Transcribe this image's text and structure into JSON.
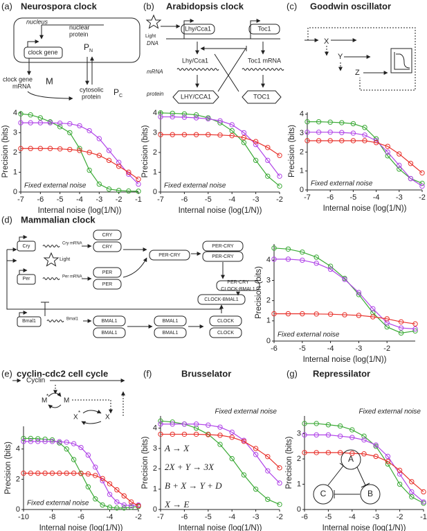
{
  "chart_data": [
    {
      "type": "line",
      "panel": "(a)",
      "title": "Neurospora clock",
      "xlabel": "Internal noise (log(1/N))",
      "ylabel": "Precision (bits)",
      "annotation": "Fixed external noise",
      "annotation_corner": "lower left",
      "x": [
        -7,
        -6.5,
        -6,
        -5.5,
        -5,
        -4.5,
        -4,
        -3.5,
        -3,
        -2.5,
        -2,
        -1.5,
        -1
      ],
      "series": [
        {
          "color": "#3aa935",
          "values": [
            3.95,
            3.9,
            3.75,
            3.55,
            3.3,
            3.0,
            2.2,
            1.1,
            0.4,
            0.15,
            0.08,
            0.05,
            0.04
          ]
        },
        {
          "color": "#b044e8",
          "values": [
            3.5,
            3.5,
            3.5,
            3.5,
            3.48,
            3.45,
            3.35,
            3.1,
            2.7,
            2.1,
            1.5,
            0.9,
            0.4
          ]
        },
        {
          "color": "#e8302a",
          "values": [
            2.2,
            2.2,
            2.2,
            2.2,
            2.18,
            2.15,
            2.1,
            2.0,
            1.85,
            1.6,
            1.3,
            1.0,
            0.65
          ]
        }
      ],
      "xlim": [
        -7,
        -1
      ],
      "ylim": [
        0,
        4.1
      ],
      "xticks": [
        -7,
        -6,
        -5,
        -4,
        -3,
        -2,
        -1
      ],
      "yticks": [
        0,
        1,
        2,
        3,
        4
      ],
      "diagram": [
        "nucleus",
        "nuclear",
        "protein",
        "P",
        "N",
        "clock gene",
        "clock gene",
        "mRNA",
        "M",
        "cytosolic",
        "protein",
        "P",
        "C"
      ]
    },
    {
      "type": "line",
      "panel": "(b)",
      "title": "Arabidopsis clock",
      "xlabel": "Internal noise (log(1/N))",
      "ylabel": "Precision (bits)",
      "annotation": "Fixed external noise",
      "annotation_corner": "lower left",
      "x": [
        -7,
        -6.5,
        -6,
        -5.5,
        -5,
        -4.5,
        -4,
        -3.5,
        -3,
        -2.5,
        -2
      ],
      "series": [
        {
          "color": "#3aa935",
          "values": [
            4.0,
            3.98,
            3.95,
            3.9,
            3.75,
            3.5,
            3.1,
            2.5,
            1.6,
            0.8,
            0.3
          ]
        },
        {
          "color": "#b044e8",
          "values": [
            3.8,
            3.8,
            3.78,
            3.75,
            3.7,
            3.6,
            3.4,
            3.0,
            2.4,
            1.6,
            0.8
          ]
        },
        {
          "color": "#e8302a",
          "values": [
            2.9,
            2.9,
            2.9,
            2.9,
            2.9,
            2.88,
            2.85,
            2.75,
            2.55,
            2.25,
            1.85
          ]
        }
      ],
      "xlim": [
        -7,
        -2
      ],
      "ylim": [
        0,
        4.1
      ],
      "xticks": [
        -7,
        -6,
        -5,
        -4,
        -3,
        -2
      ],
      "yticks": [
        0,
        1,
        2,
        3,
        4
      ],
      "diagram": [
        "Light",
        "Lhy/Cca1",
        "Toc1",
        "DNA",
        "Lhy/Cca1",
        "Toc1 mRNA",
        "mRNA",
        "protein",
        "LHY/CCA1",
        "TOC1"
      ]
    },
    {
      "type": "line",
      "panel": "(c)",
      "title": "Goodwin oscillator",
      "xlabel": "Internal noise (log(1/N))",
      "ylabel": "Precision (bits)",
      "annotation": "Fixed external noise",
      "annotation_corner": "lower left",
      "x": [
        -7,
        -6.5,
        -6,
        -5.5,
        -5,
        -4.5,
        -4,
        -3.5,
        -3,
        -2.5,
        -2
      ],
      "series": [
        {
          "color": "#3aa935",
          "values": [
            3.6,
            3.6,
            3.58,
            3.55,
            3.5,
            3.3,
            2.7,
            1.8,
            1.1,
            0.6,
            0.35
          ]
        },
        {
          "color": "#b044e8",
          "values": [
            3.05,
            3.05,
            3.05,
            3.03,
            3.0,
            2.9,
            2.6,
            2.0,
            1.3,
            0.6,
            0.2
          ]
        },
        {
          "color": "#e8302a",
          "values": [
            2.6,
            2.6,
            2.6,
            2.6,
            2.6,
            2.6,
            2.5,
            2.3,
            1.9,
            1.4,
            0.9
          ]
        }
      ],
      "xlim": [
        -7,
        -2
      ],
      "ylim": [
        0,
        4.1
      ],
      "xticks": [
        -7,
        -6,
        -5,
        -4,
        -3,
        -2
      ],
      "yticks": [
        0,
        1,
        2,
        3,
        4
      ],
      "diagram": [
        "X",
        "Y",
        "Z"
      ]
    },
    {
      "type": "line",
      "panel": "(d)",
      "title": "Mammalian clock",
      "xlabel": "Internal noise (log(1/N))",
      "ylabel": "Precision (bits)",
      "annotation": "Fixed external noise",
      "annotation_corner": "lower left",
      "x": [
        -6,
        -5.5,
        -5,
        -4.5,
        -4,
        -3.5,
        -3,
        -2.5,
        -2,
        -1.5,
        -1
      ],
      "series": [
        {
          "color": "#3aa935",
          "values": [
            4.6,
            4.55,
            4.4,
            4.15,
            3.7,
            3.1,
            2.3,
            1.4,
            0.7,
            0.4,
            0.5
          ]
        },
        {
          "color": "#b044e8",
          "values": [
            4.05,
            4.05,
            4.0,
            3.85,
            3.55,
            3.05,
            2.4,
            1.6,
            0.9,
            0.65,
            0.6
          ]
        },
        {
          "color": "#e8302a",
          "values": [
            1.35,
            1.35,
            1.35,
            1.34,
            1.33,
            1.3,
            1.27,
            1.2,
            1.1,
            0.95,
            0.85
          ]
        }
      ],
      "xlim": [
        -6,
        -1
      ],
      "ylim": [
        0,
        4.8
      ],
      "xticks": [
        -6,
        -5,
        -4,
        -3,
        -2
      ],
      "yticks": [
        0,
        1,
        2,
        3,
        4
      ],
      "diagram": [
        "Cry",
        "Cry mRNA",
        "Light",
        "Per",
        "Per mRNA",
        "Bmal1",
        "Bmal1",
        "CRY",
        "CRY",
        "PER",
        "PER",
        "PER-CRY",
        "PER-CRY",
        "PER-CRY",
        "PER-CRY",
        "CLOCK-BMAL1",
        "CLOCK-BMAL1",
        "BMAL1",
        "BMAL1",
        "BMAL1",
        "BMAL1",
        "CLOCK",
        "CLOCK"
      ]
    },
    {
      "type": "line",
      "panel": "(e)",
      "title": "cyclin-cdc2 cell cycle",
      "xlabel": "Internal noise (log(1/N))",
      "ylabel": "Precision (bits)",
      "annotation": "Fixed external noise",
      "annotation_corner": "lower left",
      "x": [
        -10,
        -9.5,
        -9,
        -8.5,
        -8,
        -7.5,
        -7,
        -6.5,
        -6,
        -5.5,
        -5,
        -4.5,
        -4,
        -3.5,
        -3,
        -2.5,
        -2
      ],
      "series": [
        {
          "color": "#3aa935",
          "values": [
            4.7,
            4.7,
            4.68,
            4.65,
            4.6,
            4.4,
            4.0,
            3.3,
            2.4,
            1.5,
            0.7,
            0.3,
            0.15,
            0.1,
            0.1,
            0.15,
            0.2
          ]
        },
        {
          "color": "#b044e8",
          "values": [
            4.5,
            4.5,
            4.5,
            4.5,
            4.5,
            4.48,
            4.45,
            4.35,
            4.1,
            3.6,
            2.8,
            1.9,
            1.0,
            0.5,
            0.3,
            0.25,
            0.3
          ]
        },
        {
          "color": "#e8302a",
          "values": [
            2.4,
            2.4,
            2.4,
            2.4,
            2.4,
            2.4,
            2.4,
            2.4,
            2.38,
            2.35,
            2.25,
            2.05,
            1.7,
            1.3,
            0.9,
            0.5,
            0.25
          ]
        }
      ],
      "xlim": [
        -10,
        -2
      ],
      "ylim": [
        0,
        5.5
      ],
      "xticks": [
        -10,
        -8,
        -6,
        -4,
        -2
      ],
      "yticks": [
        0,
        2,
        4
      ],
      "diagram": [
        "Cyclin",
        "M",
        "*",
        "M",
        "X",
        "*",
        "X"
      ]
    },
    {
      "type": "line",
      "panel": "(f)",
      "title": "Brusselator",
      "xlabel": "Internal noise (log(1/N))",
      "ylabel": "Precision (bits)",
      "annotation": "Fixed external noise",
      "annotation_corner": "upper right",
      "x": [
        -7,
        -6.5,
        -6,
        -5.5,
        -5,
        -4.5,
        -4,
        -3.5,
        -3,
        -2.5,
        -2
      ],
      "series": [
        {
          "color": "#3aa935",
          "values": [
            4.35,
            4.3,
            4.2,
            4.0,
            3.7,
            3.2,
            2.5,
            1.7,
            1.0,
            0.5,
            0.25
          ]
        },
        {
          "color": "#b044e8",
          "values": [
            4.2,
            4.2,
            4.2,
            4.2,
            4.15,
            4.05,
            3.8,
            3.4,
            2.7,
            1.9,
            1.3
          ]
        },
        {
          "color": "#e8302a",
          "values": [
            3.7,
            3.7,
            3.7,
            3.7,
            3.68,
            3.65,
            3.55,
            3.35,
            3.0,
            2.6,
            2.05
          ]
        }
      ],
      "xlim": [
        -7,
        -2
      ],
      "ylim": [
        0,
        4.6
      ],
      "xticks": [
        -7,
        -6,
        -5,
        -4,
        -3,
        -2
      ],
      "yticks": [
        0,
        1,
        2,
        3,
        4
      ],
      "diagram": [
        "A → X",
        "2X + Y → 3X",
        "B + X → Y + D",
        "X → E"
      ]
    },
    {
      "type": "line",
      "panel": "(g)",
      "title": "Repressilator",
      "xlabel": "Internal noise (log(1/N))",
      "ylabel": "Precision (bits)",
      "annotation": "Fixed external noise",
      "annotation_corner": "upper right",
      "x": [
        -6,
        -5.5,
        -5,
        -4.5,
        -4,
        -3.5,
        -3,
        -2.5,
        -2,
        -1.5,
        -1
      ],
      "series": [
        {
          "color": "#3aa935",
          "values": [
            3.4,
            3.4,
            3.35,
            3.3,
            3.15,
            2.9,
            2.5,
            1.8,
            1.0,
            0.5,
            0.25
          ]
        },
        {
          "color": "#b044e8",
          "values": [
            2.95,
            2.95,
            2.95,
            2.9,
            2.85,
            2.75,
            2.55,
            2.1,
            1.4,
            0.7,
            0.3
          ]
        },
        {
          "color": "#e8302a",
          "values": [
            2.25,
            2.25,
            2.25,
            2.25,
            2.22,
            2.2,
            2.1,
            1.9,
            1.55,
            1.1,
            0.7
          ]
        }
      ],
      "xlim": [
        -6,
        -1
      ],
      "ylim": [
        0,
        3.7
      ],
      "xticks": [
        -6,
        -5,
        -4,
        -3,
        -2,
        -1
      ],
      "yticks": [
        0,
        1,
        2,
        3
      ],
      "diagram": [
        "A",
        "B",
        "C"
      ]
    }
  ]
}
